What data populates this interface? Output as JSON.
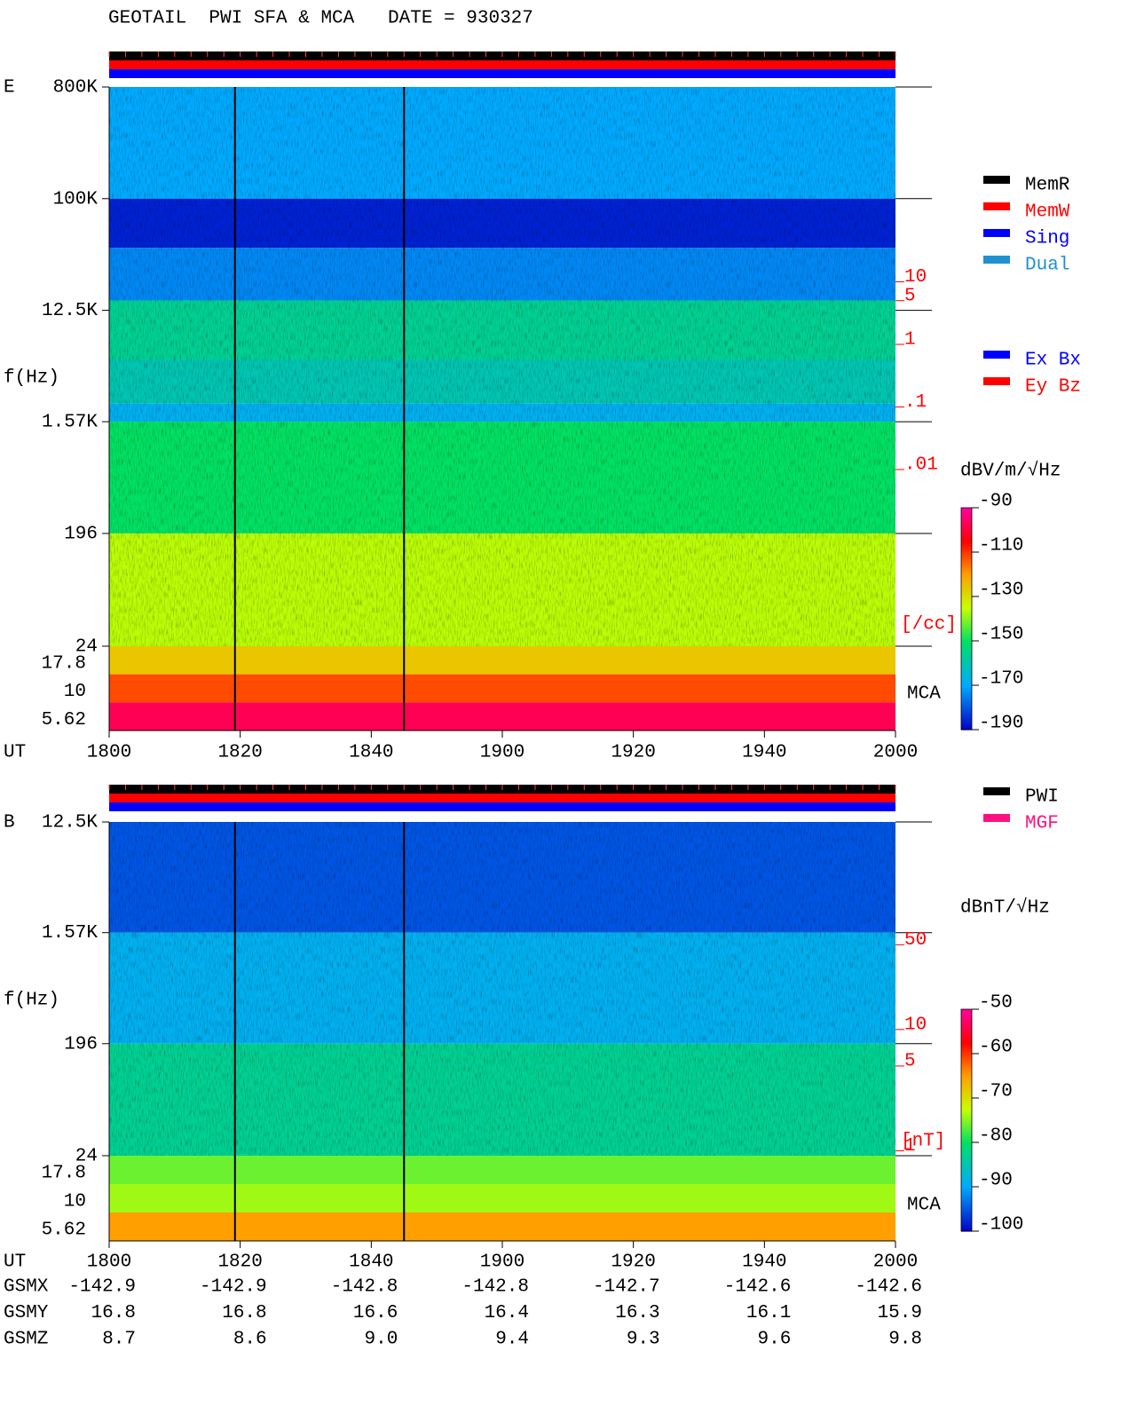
{
  "title": "GEOTAIL  PWI SFA & MCA   DATE = 930327",
  "chart_data": [
    {
      "type": "spectrogram",
      "label": "E",
      "y_label": "f(Hz)",
      "x_label": "UT",
      "log_y": true,
      "xlim": [
        18,
        20
      ],
      "xticks": [
        {
          "value": 18,
          "label": "1800"
        },
        {
          "value": 18.3333,
          "label": "1820"
        },
        {
          "value": 18.6667,
          "label": "1840"
        },
        {
          "value": 19,
          "label": "1900"
        },
        {
          "value": 19.3333,
          "label": "1920"
        },
        {
          "value": 19.6667,
          "label": "1940"
        },
        {
          "value": 20,
          "label": "2000"
        }
      ],
      "ylim": [
        24,
        800000
      ],
      "yticks": [
        {
          "value": 800000,
          "label": "800K"
        },
        {
          "value": 100000,
          "label": "100K"
        },
        {
          "value": 12500,
          "label": "12.5K"
        },
        {
          "value": 1570,
          "label": "1.57K"
        },
        196,
        24
      ],
      "y2lim": [
        1.5e-05,
        13000
      ],
      "y2_label": "[/cc]",
      "y2_color": "#ff0000",
      "y2ticks": [
        10,
        5,
        1,
        {
          "value": 0.1,
          "label": ".1"
        },
        {
          "value": 0.01,
          "label": ".01"
        }
      ],
      "bands": [
        {
          "flim": [
            100000,
            800000
          ],
          "level": -170
        },
        {
          "flim": [
            40000,
            100000
          ],
          "level": -186
        },
        {
          "flim": [
            15000,
            40000
          ],
          "level": -174
        },
        {
          "flim": [
            5000,
            15000
          ],
          "level": -156
        },
        {
          "flim": [
            2200,
            5000
          ],
          "level": -160
        },
        {
          "flim": [
            1570,
            2200
          ],
          "level": -168
        },
        {
          "flim": [
            196,
            1570
          ],
          "level": -150
        },
        {
          "flim": [
            24,
            196
          ],
          "level": -136
        }
      ],
      "mca": {
        "label": "MCA",
        "channels": [
          {
            "value": 17.8,
            "level": -126
          },
          {
            "value": 10,
            "level": -112
          },
          {
            "value": 5.62,
            "level": -97
          }
        ]
      },
      "data_gaps": [
        18.32,
        18.75
      ],
      "status_colors": [
        "#000000",
        "#ff0000",
        "#0000ff"
      ],
      "colorbar": {
        "label": "dBV/m/√Hz",
        "lim": [
          -190,
          -90
        ],
        "ticks": [
          -90,
          -110,
          -130,
          -150,
          -170,
          -190
        ]
      },
      "legends": [
        [
          {
            "name": "MemR",
            "color": "#000000"
          },
          {
            "name": "MemW",
            "color": "#ff0000"
          },
          {
            "name": "Sing",
            "color": "#0000ff"
          },
          {
            "name": "Dual",
            "color": "#2090d0"
          }
        ],
        [
          {
            "name": "Ex Bx",
            "color": "#0000ff"
          },
          {
            "name": "Ey Bz",
            "color": "#ff0000"
          }
        ]
      ]
    },
    {
      "type": "spectrogram",
      "label": "B",
      "y_label": "f(Hz)",
      "x_label": "UT",
      "log_y": true,
      "xlim": [
        18,
        20
      ],
      "xticks": [
        {
          "value": 18,
          "label": "1800"
        },
        {
          "value": 18.3333,
          "label": "1820"
        },
        {
          "value": 18.6667,
          "label": "1840"
        },
        {
          "value": 19,
          "label": "1900"
        },
        {
          "value": 19.3333,
          "label": "1920"
        },
        {
          "value": 19.6667,
          "label": "1940"
        },
        {
          "value": 20,
          "label": "2000"
        }
      ],
      "ylim": [
        24,
        12500
      ],
      "yticks": [
        {
          "value": 12500,
          "label": "12.5K"
        },
        {
          "value": 1570,
          "label": "1.57K"
        },
        196,
        24
      ],
      "y2lim": [
        0.91,
        515
      ],
      "y2_label": "[nT]",
      "y2_color": "#ff0000",
      "y2ticks": [
        50,
        10,
        5,
        1
      ],
      "bands": [
        {
          "flim": [
            1570,
            12500
          ],
          "level": -95
        },
        {
          "flim": [
            196,
            1570
          ],
          "level": -89
        },
        {
          "flim": [
            24,
            196
          ],
          "level": -83
        }
      ],
      "mca": {
        "label": "MCA",
        "channels": [
          {
            "value": 17.8,
            "level": -76
          },
          {
            "value": 10,
            "level": -74
          },
          {
            "value": 5.62,
            "level": -65
          }
        ]
      },
      "data_gaps": [
        18.32,
        18.75
      ],
      "status_colors": [
        "#000000",
        "#ff0000",
        "#0000ff"
      ],
      "colorbar": {
        "label": "dBnT/√Hz",
        "lim": [
          -100,
          -50
        ],
        "ticks": [
          -50,
          -60,
          -70,
          -80,
          -90,
          -100
        ]
      },
      "legends": [
        [
          {
            "name": "PWI",
            "color": "#000000"
          },
          {
            "name": "MGF",
            "color": "#ff1080"
          }
        ]
      ]
    }
  ],
  "orbit": {
    "rows": [
      {
        "name": "GSMX",
        "values": [
          "-142.9",
          "-142.9",
          "-142.8",
          "-142.8",
          "-142.7",
          "-142.6",
          "-142.6"
        ]
      },
      {
        "name": "GSMY",
        "values": [
          "16.8",
          "16.8",
          "16.6",
          "16.4",
          "16.3",
          "16.1",
          "15.9"
        ]
      },
      {
        "name": "GSMZ",
        "values": [
          "8.7",
          "8.6",
          "9.0",
          "9.4",
          "9.3",
          "9.6",
          "9.8"
        ]
      }
    ]
  }
}
